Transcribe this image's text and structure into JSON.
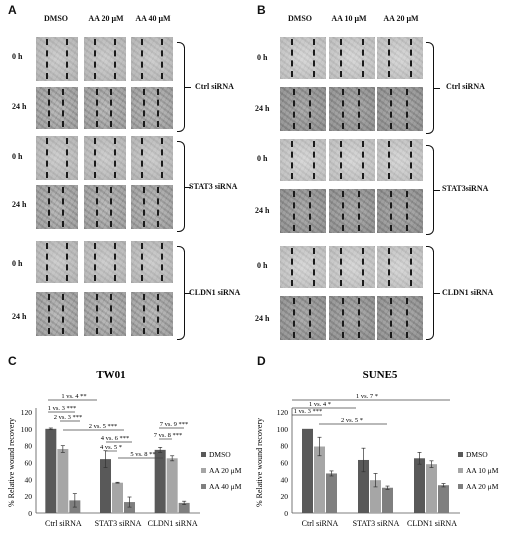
{
  "panels": {
    "A": {
      "letter": "A",
      "columns": [
        "DMSO",
        "AA 20 μM",
        "AA 40 μM"
      ],
      "rows": [
        "0 h",
        "24 h",
        "0 h",
        "24 h",
        "0 h",
        "24 h"
      ],
      "groups": [
        "Ctrl siRNA",
        "STAT3 siRNA",
        "CLDN1 siRNA"
      ]
    },
    "B": {
      "letter": "B",
      "columns": [
        "DMSO",
        "AA 10 μM",
        "AA 20 μM"
      ],
      "rows": [
        "0 h",
        "24 h",
        "0 h",
        "24 h",
        "0 h",
        "24 h"
      ],
      "groups": [
        "Ctrl siRNA",
        "STAT3siRNA",
        "CLDN1 siRNA"
      ]
    },
    "C": {
      "letter": "C"
    },
    "D": {
      "letter": "D"
    }
  },
  "chart_data": [
    {
      "type": "bar",
      "title": "TW01",
      "ylabel": "% Relative wound recovery",
      "xlabel": "",
      "ylim": [
        0,
        120
      ],
      "yticks": [
        "0",
        "20",
        "40",
        "60",
        "80",
        "100",
        "120"
      ],
      "categories": [
        "Ctrl siRNA",
        "STAT3 siRNA",
        "CLDN1 siRNA"
      ],
      "series": [
        {
          "name": "DMSO",
          "color": "#595959",
          "values": [
            100,
            64,
            75
          ],
          "errors": [
            1,
            10,
            3
          ]
        },
        {
          "name": "AA 20 μM",
          "color": "#a6a6a6",
          "values": [
            76,
            36,
            65
          ],
          "errors": [
            4,
            0.5,
            3
          ]
        },
        {
          "name": "AA 40 μM",
          "color": "#7f7f7f",
          "values": [
            15,
            13,
            12
          ],
          "errors": [
            8,
            6,
            2
          ]
        }
      ],
      "legend": "right",
      "annotations": [
        "1 vs. 4 **",
        "1 vs. 3 ***",
        "2 vs. 3 ***",
        "2 vs. 5 ***",
        "4 vs. 6 ***",
        "4 vs. 5 *",
        "5 vs. 8 **",
        "7 vs. 9 ***",
        "7 vs. 8 ***"
      ]
    },
    {
      "type": "bar",
      "title": "SUNE5",
      "ylabel": "% Relative wound recovery",
      "xlabel": "",
      "ylim": [
        0,
        120
      ],
      "yticks": [
        "0",
        "20",
        "40",
        "60",
        "80",
        "100",
        "120"
      ],
      "categories": [
        "Ctrl siRNA",
        "STAT3 siRNA",
        "CLDN1 siRNA"
      ],
      "series": [
        {
          "name": "DMSO",
          "color": "#595959",
          "values": [
            100,
            63,
            65
          ],
          "errors": [
            0,
            14,
            7
          ]
        },
        {
          "name": "AA 10 μM",
          "color": "#a6a6a6",
          "values": [
            79,
            39,
            58
          ],
          "errors": [
            11,
            8,
            4
          ]
        },
        {
          "name": "AA 20 μM",
          "color": "#7f7f7f",
          "values": [
            47,
            30,
            33
          ],
          "errors": [
            3,
            2,
            2
          ]
        }
      ],
      "legend": "right",
      "annotations": [
        "1 vs. 7 *",
        "1 vs. 4 *",
        "1 vs. 3 ***",
        "2 vs. 5 *"
      ]
    }
  ]
}
